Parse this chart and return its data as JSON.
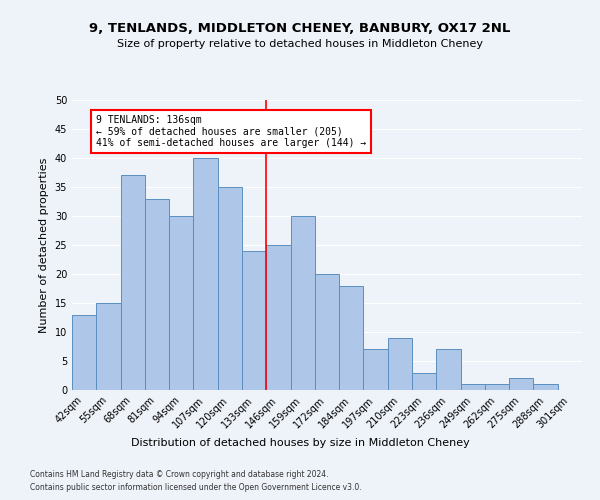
{
  "title": "9, TENLANDS, MIDDLETON CHENEY, BANBURY, OX17 2NL",
  "subtitle": "Size of property relative to detached houses in Middleton Cheney",
  "xlabel": "Distribution of detached houses by size in Middleton Cheney",
  "ylabel": "Number of detached properties",
  "categories": [
    "42sqm",
    "55sqm",
    "68sqm",
    "81sqm",
    "94sqm",
    "107sqm",
    "120sqm",
    "133sqm",
    "146sqm",
    "159sqm",
    "172sqm",
    "184sqm",
    "197sqm",
    "210sqm",
    "223sqm",
    "236sqm",
    "249sqm",
    "262sqm",
    "275sqm",
    "288sqm",
    "301sqm"
  ],
  "values": [
    13,
    15,
    37,
    33,
    30,
    40,
    35,
    24,
    25,
    30,
    20,
    18,
    7,
    9,
    3,
    7,
    1,
    1,
    2,
    1,
    0
  ],
  "bar_color": "#aec6e8",
  "bar_edge_color": "#5a8fc0",
  "vline_x_index": 7.5,
  "annotation_text_line1": "9 TENLANDS: 136sqm",
  "annotation_text_line2": "← 59% of detached houses are smaller (205)",
  "annotation_text_line3": "41% of semi-detached houses are larger (144) →",
  "annotation_box_color": "white",
  "annotation_box_edge_color": "red",
  "vline_color": "red",
  "ylim": [
    0,
    50
  ],
  "yticks": [
    0,
    5,
    10,
    15,
    20,
    25,
    30,
    35,
    40,
    45,
    50
  ],
  "background_color": "#eef2f9",
  "grid_color": "white",
  "footer_line1": "Contains HM Land Registry data © Crown copyright and database right 2024.",
  "footer_line2": "Contains public sector information licensed under the Open Government Licence v3.0.",
  "title_fontsize": 9.5,
  "subtitle_fontsize": 8,
  "ylabel_fontsize": 8,
  "xlabel_fontsize": 8,
  "tick_fontsize": 7,
  "annotation_fontsize": 7,
  "footer_fontsize": 5.5
}
